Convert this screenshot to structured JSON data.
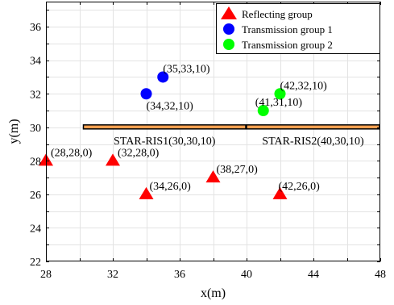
{
  "chart_data": {
    "type": "scatter",
    "title": "",
    "xlabel": "x(m)",
    "ylabel": "y(m)",
    "xlim": [
      28,
      48
    ],
    "ylim": [
      22,
      37.5
    ],
    "xticks": [
      "28",
      "32",
      "36",
      "40",
      "44",
      "48"
    ],
    "yticks": [
      "22",
      "24",
      "26",
      "28",
      "30",
      "32",
      "34",
      "36"
    ],
    "grid": true,
    "legend_position": "top-right",
    "series": [
      {
        "name": "Reflecting group",
        "marker": "triangle",
        "color": "#ff0000",
        "points": [
          {
            "x": 28,
            "y": 28,
            "label": "(28,28,0)"
          },
          {
            "x": 32,
            "y": 28,
            "label": "(32,28,0)"
          },
          {
            "x": 34,
            "y": 26,
            "label": "(34,26,0)"
          },
          {
            "x": 38,
            "y": 27,
            "label": "(38,27,0)"
          },
          {
            "x": 42,
            "y": 26,
            "label": "(42,26,0)"
          }
        ]
      },
      {
        "name": "Transmission group 1",
        "marker": "circle",
        "color": "#0000ff",
        "points": [
          {
            "x": 35,
            "y": 33,
            "label": "(35,33,10)"
          },
          {
            "x": 34,
            "y": 32,
            "label": "(34,32,10)"
          }
        ]
      },
      {
        "name": "Transmission group 2",
        "marker": "circle",
        "color": "#00ff00",
        "points": [
          {
            "x": 42,
            "y": 32,
            "label": "(42,32,10)"
          },
          {
            "x": 41,
            "y": 31,
            "label": "(41,31,10)"
          }
        ]
      }
    ],
    "surfaces": [
      {
        "label": "STAR-RIS1(30,30,10)",
        "x_start": 30,
        "x_end": 40,
        "y": 30,
        "color": "#f5a050"
      },
      {
        "label": "STAR-RIS2(40,30,10)",
        "x_start": 40,
        "x_end": 48,
        "y": 30,
        "color": "#f5a050"
      }
    ]
  }
}
